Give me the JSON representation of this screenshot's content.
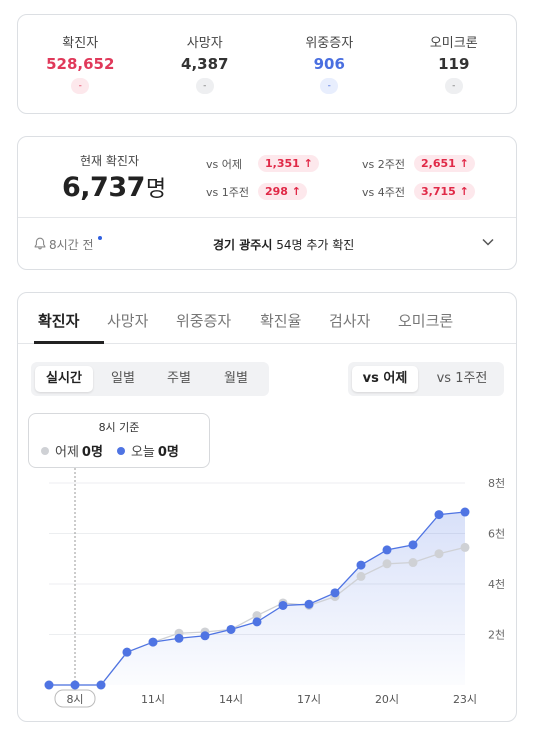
{
  "colors": {
    "confirmed": "#e0395a",
    "deaths": "#333333",
    "severe": "#4a6fe0",
    "omicron": "#333333",
    "today_line": "#4f74e3",
    "yesterday_line": "#cfd1d5"
  },
  "summary": [
    {
      "label": "확진자",
      "value": "528,652",
      "badge": "-"
    },
    {
      "label": "사망자",
      "value": "4,387",
      "badge": "-"
    },
    {
      "label": "위중증자",
      "value": "906",
      "badge": "-"
    },
    {
      "label": "오미크론",
      "value": "119",
      "badge": "-"
    }
  ],
  "current": {
    "label": "현재 확진자",
    "value": "6,737",
    "unit": "명",
    "comparisons": [
      {
        "label": "vs 어제",
        "value": "1,351"
      },
      {
        "label": "vs 2주전",
        "value": "2,651"
      },
      {
        "label": "vs 1주전",
        "value": "298"
      },
      {
        "label": "vs 4주전",
        "value": "3,715"
      }
    ],
    "time_ago": "8시간 전",
    "news_region": "경기 광주시",
    "news_text": " 54명 추가 확진"
  },
  "tabs": [
    "확진자",
    "사망자",
    "위중증자",
    "확진율",
    "검사자",
    "오미크론"
  ],
  "period_buttons": [
    "실시간",
    "일별",
    "주별",
    "월별"
  ],
  "compare_buttons": [
    "vs 어제",
    "vs 1주전"
  ],
  "tooltip": {
    "title": "8시 기준",
    "yesterday_label": "어제",
    "yesterday_value": "0명",
    "today_label": "오늘",
    "today_value": "0명"
  },
  "chart_data": {
    "type": "line",
    "x": [
      7,
      8,
      9,
      10,
      11,
      12,
      13,
      14,
      15,
      16,
      17,
      18,
      19,
      20,
      21,
      22,
      23
    ],
    "x_tick_labels": [
      "8시",
      "11시",
      "14시",
      "17시",
      "20시",
      "23시"
    ],
    "x_ticks": [
      8,
      11,
      14,
      17,
      20,
      23
    ],
    "y_tick_labels": [
      "2천",
      "4천",
      "6천",
      "8천"
    ],
    "y_ticks": [
      2000,
      4000,
      6000,
      8000
    ],
    "ylim": [
      0,
      8000
    ],
    "grid": true,
    "highlight_x": 8,
    "series": [
      {
        "name": "어제",
        "values": [
          0,
          0,
          0,
          1300,
          1700,
          2050,
          2100,
          2200,
          2750,
          3250,
          3150,
          3500,
          4300,
          4800,
          4850,
          5200,
          5450
        ]
      },
      {
        "name": "오늘",
        "values": [
          0,
          0,
          0,
          1300,
          1700,
          1850,
          1950,
          2200,
          2500,
          3150,
          3200,
          3650,
          4750,
          5350,
          5550,
          6750,
          6850
        ]
      }
    ]
  }
}
